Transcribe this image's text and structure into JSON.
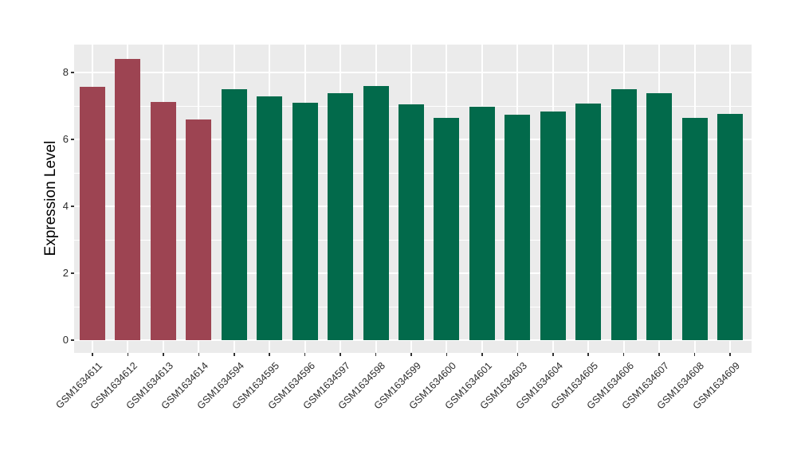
{
  "chart_data": {
    "type": "bar",
    "title": "",
    "xlabel": "",
    "ylabel": "Expression Level",
    "ylim": [
      0,
      8.85
    ],
    "yticks": [
      0,
      2,
      4,
      6,
      8
    ],
    "grid": "white major and minor gridlines on gray panel",
    "legend_position": "none",
    "categories": [
      "GSM1634611",
      "GSM1634612",
      "GSM1634613",
      "GSM1634614",
      "GSM1634594",
      "GSM1634595",
      "GSM1634596",
      "GSM1634597",
      "GSM1634598",
      "GSM1634599",
      "GSM1634600",
      "GSM1634601",
      "GSM1634603",
      "GSM1634604",
      "GSM1634605",
      "GSM1634606",
      "GSM1634607",
      "GSM1634608",
      "GSM1634609"
    ],
    "values": [
      7.57,
      8.41,
      7.12,
      6.6,
      7.5,
      7.29,
      7.1,
      7.38,
      7.6,
      7.05,
      6.64,
      6.98,
      6.74,
      6.83,
      7.07,
      7.5,
      7.38,
      6.64,
      6.76
    ],
    "bar_colors": [
      "#9D4452",
      "#9D4452",
      "#9D4452",
      "#9D4452",
      "#026A4B",
      "#026A4B",
      "#026A4B",
      "#026A4B",
      "#026A4B",
      "#026A4B",
      "#026A4B",
      "#026A4B",
      "#026A4B",
      "#026A4B",
      "#026A4B",
      "#026A4B",
      "#026A4B",
      "#026A4B",
      "#026A4B"
    ],
    "colors": {
      "highlight": "#9D4452",
      "default": "#026A4B",
      "panel_background": "#EBEBEB",
      "gridline": "#FFFFFF",
      "tick_mark": "#333333",
      "axis_text": "#2B2B2B",
      "background": "#FFFFFF"
    },
    "highlighted_samples": [
      "GSM1634611",
      "GSM1634612",
      "GSM1634613",
      "GSM1634614"
    ]
  }
}
